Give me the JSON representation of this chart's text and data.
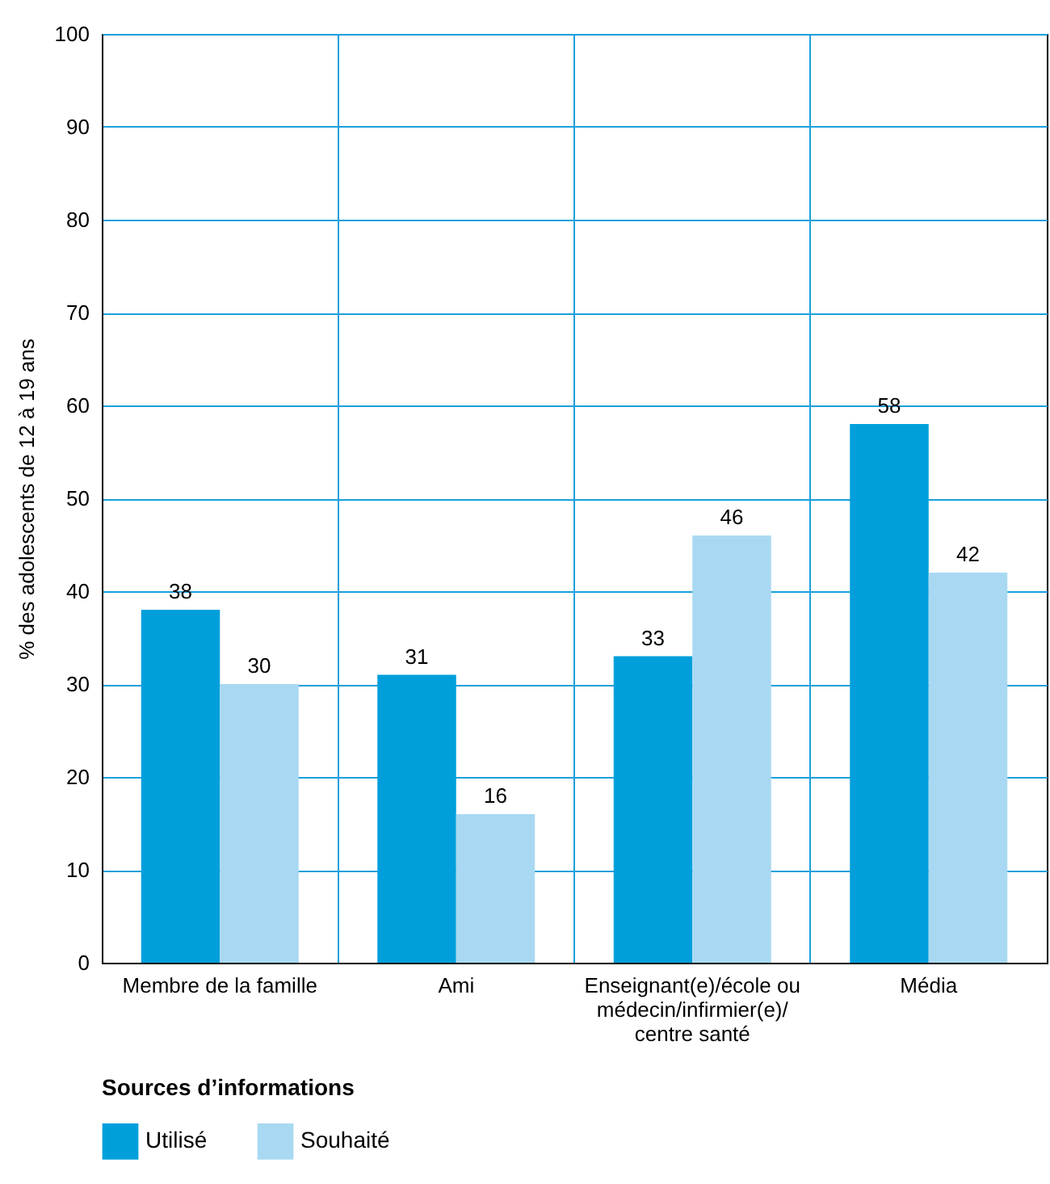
{
  "chart_data": {
    "type": "bar",
    "ylabel": "% des adolescents de 12 à 19 ans",
    "legend_title": "Sources d’informations",
    "categories": [
      "Membre de la famille",
      "Ami",
      "Enseignant(e)/école ou médecin/infirmier(e)/centre santé",
      "Média"
    ],
    "series": [
      {
        "name": "Utilisé",
        "color": "#009fdc",
        "values": [
          38,
          31,
          33,
          58
        ]
      },
      {
        "name": "Souhaité",
        "color": "#a9d9f2",
        "values": [
          30,
          16,
          46,
          42
        ]
      }
    ],
    "ylim": [
      0,
      100
    ],
    "yticks": [
      0,
      10,
      20,
      30,
      40,
      50,
      60,
      70,
      80,
      90,
      100
    ],
    "grid": true,
    "legend": "bottom",
    "data_labels": true
  }
}
